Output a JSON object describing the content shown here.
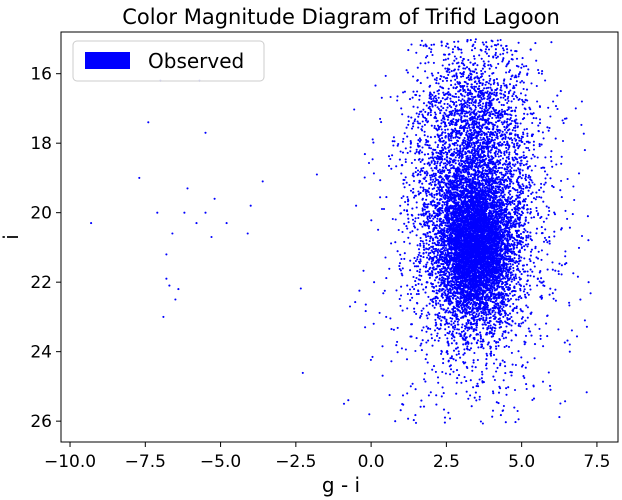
{
  "chart_data": {
    "type": "scatter",
    "title": "Color Magnitude Diagram of Trifid Lagoon",
    "xlabel": "g - i",
    "ylabel": "i",
    "xlim": [
      -10.3,
      8.2
    ],
    "ylim": [
      26.6,
      14.8
    ],
    "y_inverted": true,
    "grid": false,
    "legend_position": "top-left",
    "x_ticks": [
      -10.0,
      -7.5,
      -5.0,
      -2.5,
      0.0,
      2.5,
      5.0,
      7.5
    ],
    "x_tick_labels": [
      "−10.0",
      "−7.5",
      "−5.0",
      "−2.5",
      "0.0",
      "2.5",
      "5.0",
      "7.5"
    ],
    "y_ticks": [
      16,
      18,
      20,
      22,
      24,
      26
    ],
    "y_tick_labels": [
      "16",
      "18",
      "20",
      "22",
      "24",
      "26"
    ],
    "series": [
      {
        "name": "Observed",
        "color": "#0000ff",
        "outliers": [
          [
            -9.3,
            20.3
          ],
          [
            -7.4,
            17.4
          ],
          [
            -7.1,
            20.0
          ],
          [
            -7.0,
            16.2
          ],
          [
            -6.9,
            23.0
          ],
          [
            -6.8,
            21.2
          ],
          [
            -6.8,
            21.9
          ],
          [
            -6.7,
            22.1
          ],
          [
            -6.5,
            22.5
          ],
          [
            -6.6,
            20.6
          ],
          [
            -6.4,
            22.2
          ],
          [
            -6.2,
            20.0
          ],
          [
            -6.1,
            19.3
          ],
          [
            -5.8,
            20.3
          ],
          [
            -5.7,
            16.2
          ],
          [
            -5.5,
            17.7
          ],
          [
            -5.5,
            20.0
          ],
          [
            -5.3,
            20.7
          ],
          [
            -5.2,
            19.6
          ],
          [
            -4.8,
            20.3
          ],
          [
            -4.1,
            20.6
          ],
          [
            -4.0,
            19.8
          ],
          [
            -3.6,
            19.1
          ],
          [
            -7.7,
            19.0
          ],
          [
            -1.8,
            18.9
          ],
          [
            -0.9,
            25.5
          ],
          [
            -0.7,
            22.7
          ],
          [
            -0.5,
            19.8
          ],
          [
            -0.2,
            23.3
          ],
          [
            0.1,
            22.0
          ],
          [
            0.3,
            17.3
          ],
          [
            0.5,
            23.0
          ],
          [
            0.8,
            26.0
          ],
          [
            1.0,
            17.0
          ],
          [
            1.2,
            25.2
          ],
          [
            1.5,
            15.4
          ],
          [
            1.8,
            15.7
          ],
          [
            1.6,
            18.3
          ],
          [
            2.0,
            15.3
          ],
          [
            6.3,
            16.5
          ],
          [
            6.8,
            17.0
          ],
          [
            7.0,
            16.8
          ],
          [
            7.1,
            18.2
          ],
          [
            7.2,
            20.1
          ],
          [
            7.1,
            23.1
          ],
          [
            6.6,
            24.0
          ],
          [
            5.9,
            24.6
          ],
          [
            5.4,
            25.0
          ],
          [
            2.9,
            15.3
          ],
          [
            4.5,
            15.2
          ],
          [
            5.3,
            15.3
          ]
        ],
        "clusters": [
          {
            "cx": 3.45,
            "cy": 21.0,
            "sx": 0.62,
            "sy": 1.05,
            "n": 5200
          },
          {
            "cx": 3.3,
            "cy": 19.2,
            "sx": 0.95,
            "sy": 1.9,
            "n": 2600
          },
          {
            "cx": 3.5,
            "cy": 20.6,
            "sx": 1.25,
            "sy": 2.3,
            "n": 1600
          },
          {
            "cx": 3.6,
            "cy": 17.1,
            "sx": 0.95,
            "sy": 1.1,
            "n": 700
          },
          {
            "cx": 3.5,
            "cy": 21.5,
            "sx": 1.9,
            "sy": 2.6,
            "n": 400
          }
        ]
      }
    ]
  }
}
